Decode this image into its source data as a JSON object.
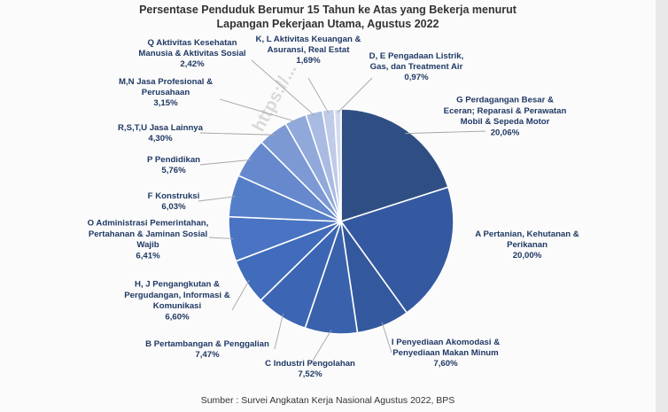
{
  "title_line1": "Persentase Penduduk Berumur 15 Tahun ke Atas yang Bekerja menurut",
  "title_line2": "Lapangan Pekerjaan Utama, Agustus 2022",
  "source": "Sumber : Survei Angkatan Kerja Nasional Agustus 2022, BPS",
  "watermark": "https://...",
  "chart_data": {
    "type": "pie",
    "title": "Persentase Penduduk Berumur 15 Tahun ke Atas yang Bekerja menurut Lapangan Pekerjaan Utama, Agustus 2022",
    "slices": [
      {
        "label": [
          "G Perdagangan Besar &",
          "Eceran; Reparasi & Perawatan",
          "Mobil & Sepeda Motor"
        ],
        "value_text": "20,06%",
        "value": 20.06,
        "color": "#2f4f84"
      },
      {
        "label": [
          "A Pertanian, Kehutanan &",
          "Perikanan"
        ],
        "value_text": "20,00%",
        "value": 20.0,
        "color": "#3559a0"
      },
      {
        "label": [
          "I Penyediaan Akomodasi &",
          "Penyediaan Makan Minum"
        ],
        "value_text": "7,60%",
        "value": 7.6,
        "color": "#34589d"
      },
      {
        "label": [
          "C Industri Pengolahan"
        ],
        "value_text": "7,52%",
        "value": 7.52,
        "color": "#3a62ac"
      },
      {
        "label": [
          "B Pertambangan & Penggalian"
        ],
        "value_text": "7,47%",
        "value": 7.47,
        "color": "#3c66b3"
      },
      {
        "label": [
          "H, J Pengangkutan &",
          "Pergudangan, Informasi &",
          "Komunikasi"
        ],
        "value_text": "6,60%",
        "value": 6.6,
        "color": "#416bbb"
      },
      {
        "label": [
          "O Administrasi Pemerintahan,",
          "Pertahanan & Jaminan Sosial",
          "Wajib"
        ],
        "value_text": "6,41%",
        "value": 6.41,
        "color": "#4a74c3"
      },
      {
        "label": [
          "F Konstruksi"
        ],
        "value_text": "6,03%",
        "value": 6.03,
        "color": "#557ec8"
      },
      {
        "label": [
          "P Pendidikan"
        ],
        "value_text": "5,76%",
        "value": 5.76,
        "color": "#6689cd"
      },
      {
        "label": [
          "R,S,T,U Jasa Lainnya"
        ],
        "value_text": "4,30%",
        "value": 4.3,
        "color": "#7c99d4"
      },
      {
        "label": [
          "M,N Jasa Profesional &",
          "Perusahaan"
        ],
        "value_text": "3,15%",
        "value": 3.15,
        "color": "#91a9da"
      },
      {
        "label": [
          "Q Aktivitas Kesehatan",
          "Manusia & Aktivitas Sosial"
        ],
        "value_text": "2,42%",
        "value": 2.42,
        "color": "#a9bbe2"
      },
      {
        "label": [
          "K, L Aktivitas Keuangan &",
          "Asuransi, Real Estat"
        ],
        "value_text": "1,69%",
        "value": 1.69,
        "color": "#bfcbe8"
      },
      {
        "label": [
          "D, E Pengadaan Listrik,",
          "Gas, dan Treatment Air"
        ],
        "value_text": "0,97%",
        "value": 0.97,
        "color": "#d3dcef"
      }
    ]
  }
}
